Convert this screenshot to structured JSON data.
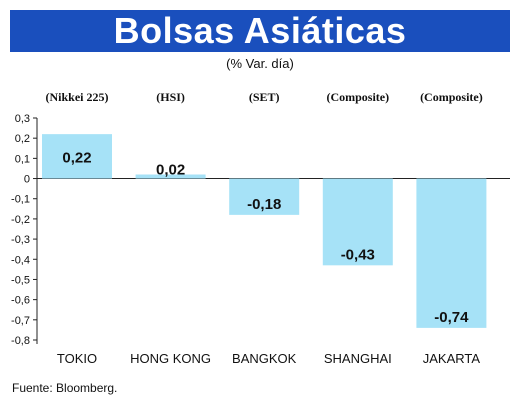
{
  "chart_data": {
    "type": "bar",
    "title": "Bolsas Asiáticas",
    "subtitle": "(% Var. día)",
    "categories": [
      "TOKIO",
      "HONG KONG",
      "BANGKOK",
      "SHANGHAI",
      "JAKARTA"
    ],
    "indices": [
      "(Nikkei 225)",
      "(HSI)",
      "(SET)",
      "(Composite)",
      "(Composite)"
    ],
    "values": [
      0.22,
      0.02,
      -0.18,
      -0.43,
      -0.74
    ],
    "value_labels": [
      "0,22",
      "0,02",
      "-0,18",
      "-0,43",
      "-0,74"
    ],
    "ylim": [
      -0.8,
      0.3
    ],
    "yticks": [
      "0,3",
      "0,2",
      "0,1",
      "0",
      "-0,1",
      "-0,2",
      "-0,3",
      "-0,4",
      "-0,5",
      "-0,6",
      "-0,7",
      "-0,8"
    ],
    "ytick_values": [
      0.3,
      0.2,
      0.1,
      0,
      -0.1,
      -0.2,
      -0.3,
      -0.4,
      -0.5,
      -0.6,
      -0.7,
      -0.8
    ],
    "grid": false,
    "bar_color": "#a6e2f7",
    "title_bg_color": "#1a4fbd"
  },
  "source": "Fuente: Bloomberg."
}
